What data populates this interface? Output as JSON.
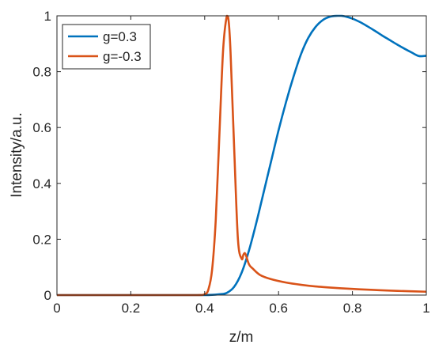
{
  "chart_data": {
    "type": "line",
    "title": "",
    "xlabel": "z/m",
    "ylabel": "Intensity/a.u.",
    "xlim": [
      0,
      1
    ],
    "ylim": [
      0,
      1
    ],
    "x_ticks": [
      "0",
      "0.2",
      "0.4",
      "0.6",
      "0.8",
      "1"
    ],
    "y_ticks": [
      "0",
      "0.2",
      "0.4",
      "0.6",
      "0.8",
      "1"
    ],
    "grid": false,
    "legend_position": "top-left",
    "series": [
      {
        "name": "g=0.3",
        "color": "#0072BD",
        "x": [
          0,
          0.1,
          0.2,
          0.3,
          0.4,
          0.44,
          0.46,
          0.48,
          0.5,
          0.52,
          0.54,
          0.56,
          0.58,
          0.6,
          0.62,
          0.64,
          0.66,
          0.68,
          0.7,
          0.72,
          0.74,
          0.76,
          0.77,
          0.78,
          0.8,
          0.82,
          0.84,
          0.86,
          0.88,
          0.9,
          0.92,
          0.94,
          0.96,
          0.98,
          1.0
        ],
        "values": [
          0,
          0,
          0,
          0,
          0,
          0.003,
          0.008,
          0.03,
          0.08,
          0.16,
          0.26,
          0.37,
          0.48,
          0.59,
          0.69,
          0.78,
          0.86,
          0.92,
          0.96,
          0.985,
          0.997,
          1.0,
          1.0,
          0.998,
          0.99,
          0.978,
          0.963,
          0.947,
          0.93,
          0.914,
          0.898,
          0.883,
          0.869,
          0.856,
          0.857
        ]
      },
      {
        "name": "g=-0.3",
        "color": "#D95319",
        "x": [
          0,
          0.1,
          0.2,
          0.3,
          0.38,
          0.4,
          0.41,
          0.42,
          0.43,
          0.44,
          0.45,
          0.46,
          0.465,
          0.47,
          0.48,
          0.49,
          0.5,
          0.505,
          0.51,
          0.52,
          0.53,
          0.55,
          0.58,
          0.62,
          0.66,
          0.7,
          0.75,
          0.8,
          0.85,
          0.9,
          0.95,
          1.0
        ],
        "values": [
          0,
          0,
          0,
          0,
          0,
          0.003,
          0.02,
          0.09,
          0.27,
          0.58,
          0.88,
          1.0,
          0.98,
          0.87,
          0.52,
          0.2,
          0.13,
          0.145,
          0.148,
          0.11,
          0.095,
          0.072,
          0.057,
          0.045,
          0.037,
          0.031,
          0.026,
          0.022,
          0.019,
          0.016,
          0.014,
          0.012
        ]
      }
    ]
  }
}
